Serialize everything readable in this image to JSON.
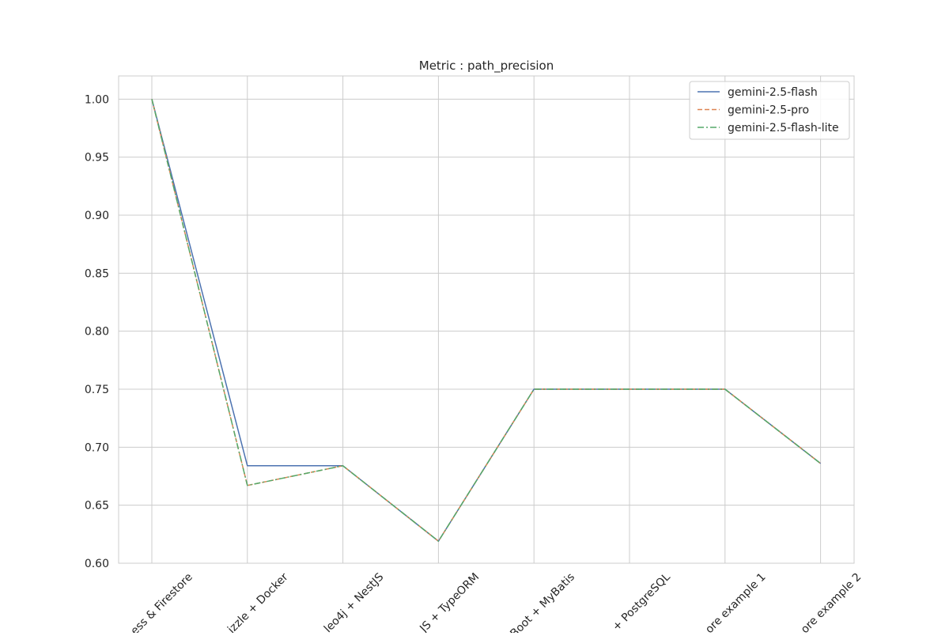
{
  "chart_data": {
    "type": "line",
    "title": "Metric : path_precision",
    "xlabel": "",
    "ylabel": "",
    "categories": [
      "ess & Firestore",
      "izzle + Docker",
      "leo4j + NestJS",
      "JS + TypeORM",
      "Boot + MyBatis",
      "+ PostgreSQL",
      "ore example 1",
      "ore example 2"
    ],
    "x_tick_labels": [
      "ess & Firestore",
      "izzle + Docker",
      "leo4j + NestJS",
      "JS + TypeORM",
      "Boot + MyBatis",
      "+ PostgreSQL",
      "ore example 1",
      "ore example 2"
    ],
    "y_ticks": [
      "0.60",
      "0.65",
      "0.70",
      "0.75",
      "0.80",
      "0.85",
      "0.90",
      "0.95",
      "1.00"
    ],
    "ylim": [
      0.6,
      1.02
    ],
    "grid": true,
    "legend_position": "top-right",
    "series": [
      {
        "name": "gemini-2.5-flash",
        "color": "#4c72b0",
        "dash": "solid",
        "values": [
          1.0,
          0.684,
          0.684,
          0.619,
          0.75,
          0.75,
          0.75,
          0.686
        ]
      },
      {
        "name": "gemini-2.5-pro",
        "color": "#dd8452",
        "dash": "dashed",
        "values": [
          1.0,
          0.667,
          0.684,
          0.619,
          0.75,
          0.75,
          0.75,
          0.686
        ]
      },
      {
        "name": "gemini-2.5-flash-lite",
        "color": "#55a868",
        "dash": "dashdot",
        "values": [
          1.0,
          0.667,
          0.684,
          0.619,
          0.75,
          0.75,
          0.75,
          0.686
        ]
      }
    ]
  }
}
